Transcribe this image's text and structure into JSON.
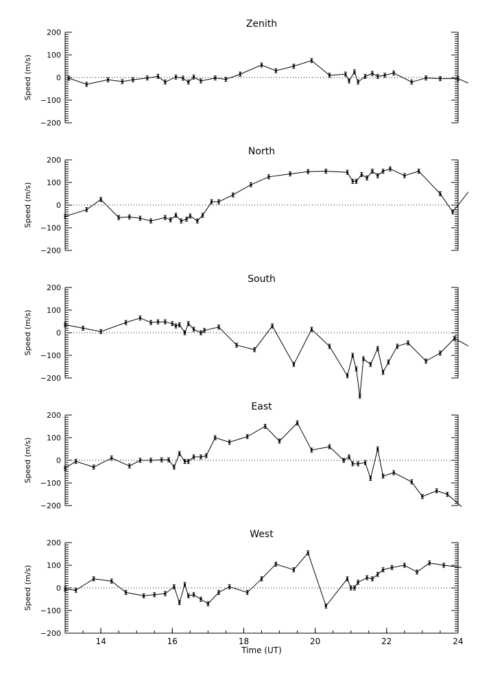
{
  "chart_data": [
    {
      "type": "line",
      "title": "Zenith",
      "xlabel": "",
      "ylabel": "Speed (m/s)",
      "xlim": [
        13,
        24
      ],
      "ylim": [
        -200,
        200
      ],
      "xticks": [],
      "yticks": [
        "200",
        "100",
        "0",
        "−100",
        "−200"
      ],
      "zero_line": "dotted",
      "x": [
        13.1,
        13.6,
        14.2,
        14.6,
        14.9,
        15.3,
        15.6,
        15.8,
        16.1,
        16.3,
        16.45,
        16.6,
        16.8,
        17.2,
        17.5,
        17.9,
        18.5,
        18.9,
        19.4,
        19.9,
        20.4,
        20.85,
        20.95,
        21.1,
        21.2,
        21.4,
        21.6,
        21.75,
        21.95,
        22.2,
        22.7,
        23.1,
        23.5,
        24.0,
        24.3
      ],
      "y": [
        -3,
        -30,
        -10,
        -18,
        -10,
        -2,
        5,
        -20,
        2,
        -3,
        -20,
        2,
        -15,
        -2,
        -8,
        15,
        55,
        30,
        50,
        75,
        10,
        15,
        -15,
        25,
        -20,
        5,
        18,
        5,
        10,
        20,
        -20,
        -2,
        -5,
        -5,
        -25
      ]
    },
    {
      "type": "line",
      "title": "North",
      "xlabel": "",
      "ylabel": "Speed (m/s)",
      "xlim": [
        13,
        24
      ],
      "ylim": [
        -200,
        200
      ],
      "xticks": [],
      "yticks": [
        "200",
        "100",
        "0",
        "−100",
        "−200"
      ],
      "zero_line": "dotted",
      "x": [
        13.0,
        13.6,
        14.0,
        14.5,
        14.8,
        15.1,
        15.4,
        15.8,
        15.95,
        16.1,
        16.25,
        16.4,
        16.5,
        16.7,
        16.85,
        17.1,
        17.3,
        17.7,
        18.2,
        18.7,
        19.3,
        19.8,
        20.3,
        20.9,
        21.05,
        21.15,
        21.3,
        21.45,
        21.6,
        21.75,
        21.9,
        22.1,
        22.5,
        22.9,
        23.5,
        23.85,
        24.3
      ],
      "y": [
        -50,
        -20,
        25,
        -55,
        -52,
        -58,
        -70,
        -55,
        -65,
        -45,
        -70,
        -62,
        -48,
        -70,
        -45,
        15,
        15,
        45,
        90,
        125,
        138,
        148,
        150,
        145,
        105,
        105,
        135,
        120,
        150,
        130,
        150,
        160,
        130,
        150,
        50,
        -30,
        60
      ]
    },
    {
      "type": "line",
      "title": "South",
      "xlabel": "",
      "ylabel": "Speed (m/s)",
      "xlim": [
        13,
        24
      ],
      "ylim": [
        -200,
        200
      ],
      "xticks": [],
      "yticks": [
        "200",
        "100",
        "0",
        "−100",
        "−200"
      ],
      "zero_line": "dotted",
      "x": [
        13.0,
        13.5,
        14.0,
        14.7,
        15.1,
        15.4,
        15.6,
        15.8,
        16.0,
        16.1,
        16.2,
        16.35,
        16.45,
        16.6,
        16.8,
        16.9,
        17.3,
        17.8,
        18.3,
        18.8,
        19.4,
        19.9,
        20.4,
        20.9,
        21.05,
        21.15,
        21.25,
        21.35,
        21.55,
        21.75,
        21.9,
        22.05,
        22.3,
        22.6,
        23.1,
        23.5,
        23.9,
        24.3
      ],
      "y": [
        35,
        20,
        5,
        45,
        65,
        45,
        48,
        48,
        40,
        30,
        35,
        0,
        40,
        15,
        0,
        10,
        25,
        -55,
        -75,
        30,
        -140,
        15,
        -60,
        -190,
        -100,
        -160,
        -280,
        -115,
        -140,
        -70,
        -175,
        -130,
        -60,
        -45,
        -125,
        -90,
        -25,
        -60
      ]
    },
    {
      "type": "line",
      "title": "East",
      "xlabel": "",
      "ylabel": "Speed (m/s)",
      "xlim": [
        13,
        24
      ],
      "ylim": [
        -200,
        200
      ],
      "xticks": [],
      "yticks": [
        "200",
        "100",
        "0",
        "−100",
        "−200"
      ],
      "zero_line": "dotted",
      "x": [
        13.0,
        13.3,
        13.8,
        14.3,
        14.8,
        15.1,
        15.4,
        15.7,
        15.9,
        16.05,
        16.2,
        16.35,
        16.45,
        16.6,
        16.8,
        16.95,
        17.2,
        17.6,
        18.1,
        18.6,
        19.0,
        19.5,
        19.9,
        20.4,
        20.8,
        20.95,
        21.05,
        21.2,
        21.4,
        21.55,
        21.75,
        21.9,
        22.2,
        22.7,
        23.0,
        23.4,
        23.7,
        24.1
      ],
      "y": [
        -35,
        -5,
        -30,
        10,
        -25,
        0,
        0,
        2,
        2,
        -30,
        30,
        -5,
        -5,
        15,
        15,
        20,
        100,
        80,
        105,
        150,
        85,
        165,
        45,
        60,
        0,
        15,
        -15,
        -15,
        -10,
        -80,
        50,
        -70,
        -55,
        -95,
        -160,
        -135,
        -150,
        -205
      ]
    },
    {
      "type": "line",
      "title": "West",
      "xlabel": "Time (UT)",
      "ylabel": "Speed (m/s)",
      "xlim": [
        13,
        24
      ],
      "ylim": [
        -200,
        200
      ],
      "xticks": [
        "14",
        "16",
        "18",
        "20",
        "22",
        "24"
      ],
      "yticks": [
        "200",
        "100",
        "0",
        "−100",
        "−200"
      ],
      "zero_line": "dotted",
      "x": [
        13.0,
        13.3,
        13.8,
        14.3,
        14.7,
        15.2,
        15.5,
        15.8,
        16.05,
        16.2,
        16.35,
        16.45,
        16.6,
        16.8,
        17.0,
        17.3,
        17.6,
        18.1,
        18.5,
        18.9,
        19.4,
        19.8,
        20.3,
        20.9,
        21.0,
        21.1,
        21.2,
        21.45,
        21.6,
        21.75,
        21.9,
        22.15,
        22.5,
        22.85,
        23.2,
        23.6,
        24.1
      ],
      "y": [
        -5,
        -10,
        40,
        30,
        -20,
        -35,
        -30,
        -25,
        5,
        -65,
        15,
        -35,
        -30,
        -50,
        -70,
        -20,
        5,
        -20,
        40,
        105,
        80,
        155,
        -80,
        40,
        0,
        0,
        25,
        45,
        40,
        60,
        80,
        90,
        100,
        70,
        110,
        100,
        90
      ]
    }
  ]
}
